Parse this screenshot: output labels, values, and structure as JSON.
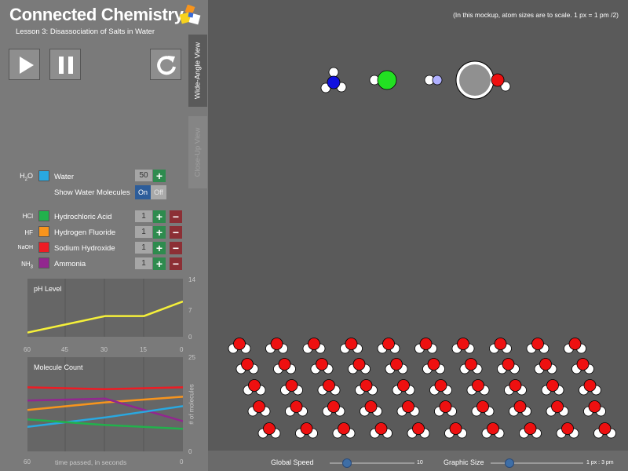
{
  "app": {
    "title": "Connected Chemistry",
    "lesson": "Lesson 3: Disassociation of Salts in Water"
  },
  "controls": {
    "play_icon": "play-icon",
    "pause_icon": "pause-icon",
    "reset_icon": "reset-icon"
  },
  "tabs": {
    "wide_angle": "Wide-Angle View",
    "close_up": "Close-Up View"
  },
  "water": {
    "formula_main": "H",
    "formula_sub": "2",
    "formula_end": "O",
    "color": "#29a8e0",
    "label": "Water",
    "count": "50"
  },
  "show_water": {
    "label": "Show Water Molecules",
    "on": "On",
    "off": "Off"
  },
  "chemicals": [
    {
      "formula": "HCl",
      "label": "Hydrochloric Acid",
      "color": "#22b14c",
      "count": "1"
    },
    {
      "formula": "HF",
      "label": "Hydrogen Fluoride",
      "color": "#f7941d",
      "count": "1"
    },
    {
      "formula": "NaOH",
      "label": "Sodium Hydroxide",
      "color": "#ee1c24",
      "count": "1"
    },
    {
      "formula_main": "NH",
      "formula_sub": "3",
      "label": "Ammonia",
      "color": "#92278f",
      "count": "1"
    }
  ],
  "ph_graph": {
    "title": "pH Level",
    "y_ticks": [
      "14",
      "7",
      "0"
    ],
    "x_ticks": [
      "60",
      "45",
      "30",
      "15",
      "0"
    ]
  },
  "mol_graph": {
    "title": "Molecule Count",
    "y_ticks": [
      "25",
      "0"
    ],
    "x_ticks": [
      "60",
      "0"
    ],
    "xlabel": "time passed, in seconds",
    "ylabel": "# of molecules"
  },
  "chart_data": [
    {
      "type": "line",
      "title": "pH Level",
      "x": [
        60,
        45,
        30,
        15,
        0
      ],
      "series": [
        {
          "values": [
            1,
            3,
            5,
            5,
            8.5
          ],
          "color": "#f5f03a"
        }
      ],
      "ylim": [
        0,
        14
      ]
    },
    {
      "type": "line",
      "title": "Molecule Count",
      "xlabel": "time passed, in seconds",
      "ylabel": "# of molecules",
      "x": [
        60,
        30,
        0
      ],
      "series": [
        {
          "values": [
            17,
            16.5,
            17
          ],
          "color": "#ee1c24"
        },
        {
          "values": [
            11,
            13,
            14.5
          ],
          "color": "#f7941d"
        },
        {
          "values": [
            13.5,
            14,
            8
          ],
          "color": "#92278f"
        },
        {
          "values": [
            6.5,
            9,
            12
          ],
          "color": "#29a8e0"
        },
        {
          "values": [
            8.5,
            7,
            6
          ],
          "color": "#22b14c"
        }
      ],
      "ylim": [
        0,
        25
      ]
    }
  ],
  "scale_note": "(In this mockup, atom sizes are to scale.  1 px = 1 pm /2)",
  "sliders": {
    "speed_label": "Global Speed",
    "speed_value": "10",
    "speed_level": 0.2,
    "size_label": "Graphic Size",
    "size_value": "1 px : 3 pm",
    "size_level": 0.2
  }
}
